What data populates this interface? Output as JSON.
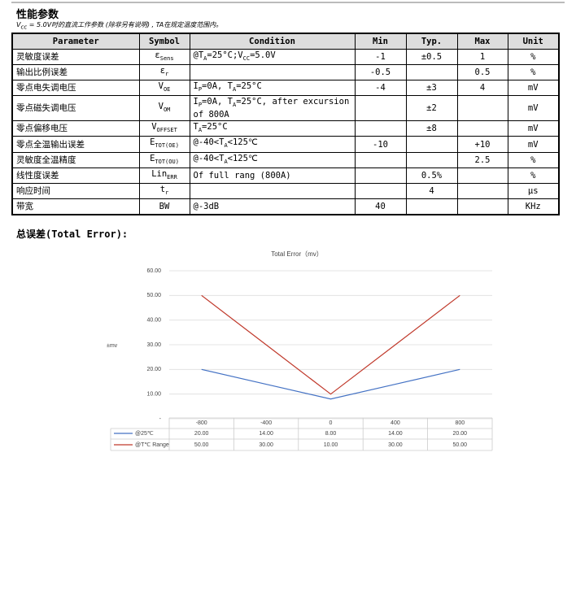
{
  "header": {
    "title": "性能参数",
    "note": [
      "V",
      {
        "sub": "cc"
      },
      " = 5.0V时的直流工作参数 (除非另有说明) , TA在规定温度范围内。"
    ]
  },
  "table": {
    "columns": [
      "Parameter",
      "Symbol",
      "Condition",
      "Min",
      "Typ.",
      "Max",
      "Unit"
    ],
    "rows": [
      [
        "灵敏度误差",
        [
          "ε",
          {
            "sub": "Sens"
          }
        ],
        [
          "@T",
          {
            "sub": "A"
          },
          "=25°C;V",
          {
            "sub": "CC"
          },
          "=5.0V"
        ],
        "-1",
        "±0.5",
        "1",
        "%"
      ],
      [
        "输出比例误差",
        [
          "ε",
          {
            "sub": "r"
          }
        ],
        null,
        "-0.5",
        null,
        "0.5",
        "%"
      ],
      [
        "零点电失调电压",
        [
          "V",
          {
            "sub": "OE"
          }
        ],
        [
          "I",
          {
            "sub": "P"
          },
          "=0A, T",
          {
            "sub": "A"
          },
          "=25°C"
        ],
        "-4",
        "±3",
        "4",
        "mV"
      ],
      [
        "零点磁失调电压",
        [
          "V",
          {
            "sub": "OM"
          }
        ],
        [
          "I",
          {
            "sub": "P"
          },
          "=0A, T",
          {
            "sub": "A"
          },
          "=25°C, after excursion of 800A"
        ],
        null,
        "±2",
        null,
        "mV"
      ],
      [
        "零点偏移电压",
        [
          "V",
          {
            "sub": "OFFSET"
          }
        ],
        [
          "T",
          {
            "sub": "A"
          },
          "=25°C"
        ],
        null,
        "±8",
        null,
        "mV"
      ],
      [
        "零点全温输出误差",
        [
          "E",
          {
            "sub": "TOT(OE)"
          }
        ],
        [
          "@-40<T",
          {
            "sub": "A"
          },
          "<125℃"
        ],
        "-10",
        null,
        "+10",
        "mV"
      ],
      [
        "灵敏度全温精度",
        [
          "E",
          {
            "sub": "TOT(OU)"
          }
        ],
        [
          "@-40<T",
          {
            "sub": "A"
          },
          "<125℃"
        ],
        null,
        null,
        "2.5",
        "%"
      ],
      [
        "线性度误差",
        [
          "Lin",
          {
            "sub": "ERR"
          }
        ],
        "Of full rang (800A)",
        null,
        "0.5%",
        null,
        "%"
      ],
      [
        "响应时间",
        [
          "t",
          {
            "sub": "r"
          }
        ],
        null,
        null,
        "4",
        null,
        "μs"
      ],
      [
        "带宽",
        "BW",
        "@-3dB",
        "40",
        null,
        null,
        "KHz"
      ]
    ]
  },
  "section_title": "总误差(Total Error):",
  "chart_data": {
    "type": "line",
    "title": "Total Error（mv）",
    "y_label": "±mv",
    "categories": [
      "-800",
      "-400",
      "0",
      "400",
      "800"
    ],
    "series": [
      {
        "name": "@25℃",
        "color": "#4472c4",
        "values": [
          20,
          14,
          8,
          14,
          20
        ],
        "value_labels": [
          "20.00",
          "14.00",
          "8.00",
          "14.00",
          "20.00"
        ]
      },
      {
        "name": "@T℃ Range",
        "color": "#c0392b",
        "values": [
          50,
          30,
          10,
          30,
          50
        ],
        "value_labels": [
          "50.00",
          "30.00",
          "10.00",
          "30.00",
          "50.00"
        ]
      }
    ],
    "ylim": [
      0,
      60
    ],
    "yticks": [
      {
        "value": 0,
        "label": "-"
      },
      {
        "value": 10,
        "label": "10.00"
      },
      {
        "value": 20,
        "label": "20.00"
      },
      {
        "value": 30,
        "label": "30.00"
      },
      {
        "value": 40,
        "label": "40.00"
      },
      {
        "value": 50,
        "label": "50.00"
      },
      {
        "value": 60,
        "label": "60.00"
      }
    ],
    "grid": true
  }
}
